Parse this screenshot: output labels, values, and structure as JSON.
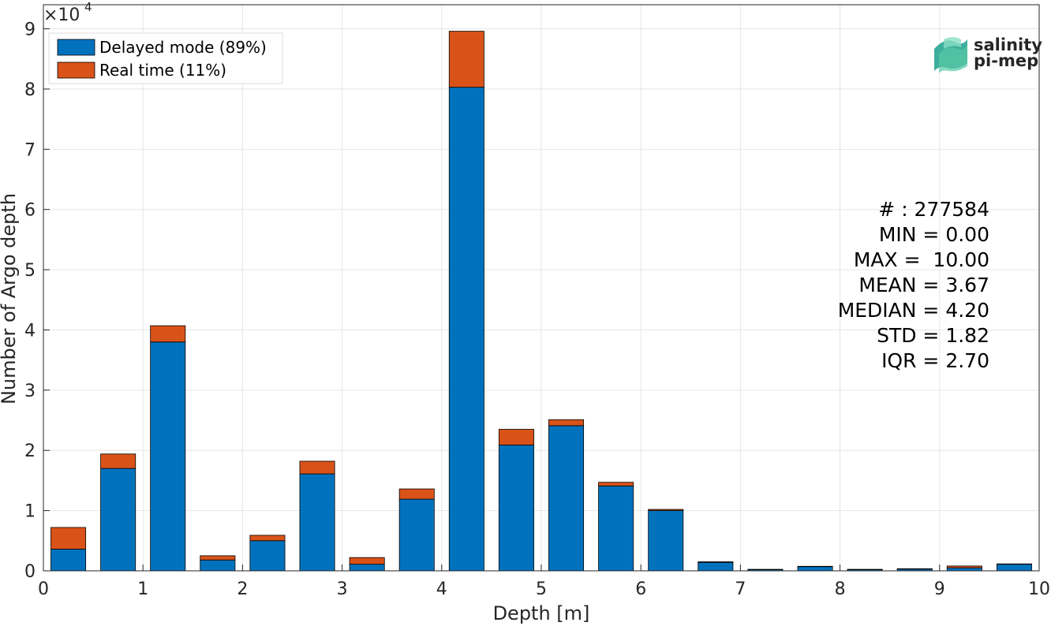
{
  "chart_data": {
    "type": "bar",
    "stacked": true,
    "xlabel": "Depth [m]",
    "ylabel": "Number of Argo depth",
    "xlim": [
      0,
      10
    ],
    "ylim": [
      0,
      94000
    ],
    "x_ticks": [
      "0",
      "1",
      "2",
      "3",
      "4",
      "5",
      "6",
      "7",
      "8",
      "9",
      "10"
    ],
    "y_ticks": [
      "0",
      "1",
      "2",
      "3",
      "4",
      "5",
      "6",
      "7",
      "8",
      "9"
    ],
    "y_exponent_label": "×10",
    "y_exponent_power": "4",
    "grid": true,
    "legend_position": "top-left",
    "x": [
      0.25,
      0.75,
      1.25,
      1.75,
      2.25,
      2.75,
      3.25,
      3.75,
      4.25,
      4.75,
      5.25,
      5.75,
      6.25,
      6.75,
      7.25,
      7.75,
      8.25,
      8.75,
      9.25,
      9.75
    ],
    "series": [
      {
        "name": "Delayed mode (89%)",
        "color": "#0072BD",
        "values": [
          3600,
          17000,
          38000,
          1800,
          5000,
          16100,
          1100,
          11900,
          80300,
          20900,
          24100,
          14100,
          10000,
          1400,
          200,
          700,
          200,
          300,
          500,
          1100
        ]
      },
      {
        "name": "Real time (11%)",
        "color": "#D95319",
        "values": [
          3600,
          2400,
          2700,
          700,
          900,
          2100,
          1100,
          1700,
          9300,
          2600,
          1000,
          600,
          200,
          100,
          50,
          50,
          50,
          50,
          300,
          50
        ]
      }
    ],
    "stats": [
      "# : 277584",
      "MIN = 0.00",
      "MAX =  10.00",
      "MEAN = 3.67",
      "MEDIAN = 4.20",
      "STD = 1.82",
      "IQR = 2.70"
    ]
  },
  "logo": {
    "line1": "salinity",
    "line2": "pi-mep",
    "color": "#1aa08c"
  }
}
